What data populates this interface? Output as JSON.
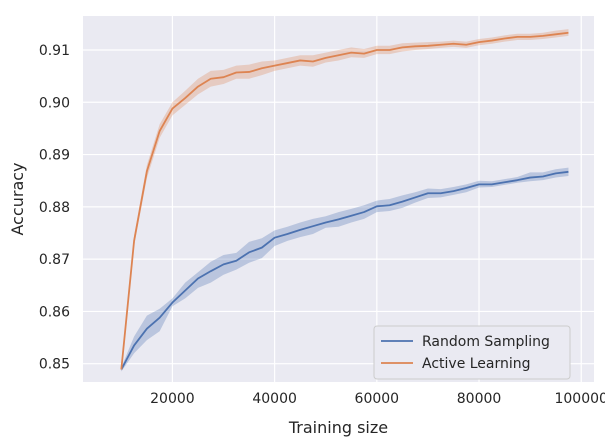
{
  "chart_data": {
    "type": "line",
    "xlabel": "Training size",
    "ylabel": "Accuracy",
    "xlim": [
      2500,
      102500
    ],
    "ylim": [
      0.8465,
      0.9165
    ],
    "x_ticks": [
      20000,
      40000,
      60000,
      80000,
      100000
    ],
    "x_tick_labels": [
      "20000",
      "40000",
      "60000",
      "80000",
      "100000"
    ],
    "y_ticks": [
      0.85,
      0.86,
      0.87,
      0.88,
      0.89,
      0.9,
      0.91
    ],
    "y_tick_labels": [
      "0.85",
      "0.86",
      "0.87",
      "0.88",
      "0.89",
      "0.90",
      "0.91"
    ],
    "grid": true,
    "legend_position": "bottom-right",
    "series": [
      {
        "name": "Random Sampling",
        "color": "#4c72b0",
        "x": [
          10000,
          12500,
          15000,
          17500,
          20000,
          22500,
          25000,
          27500,
          30000,
          32500,
          35000,
          37500,
          40000,
          42500,
          45000,
          47500,
          50000,
          52500,
          55000,
          57500,
          60000,
          62500,
          65000,
          67500,
          70000,
          72500,
          75000,
          77500,
          80000,
          82500,
          85000,
          87500,
          90000,
          92500,
          95000,
          97500
        ],
        "y": [
          0.8489,
          0.8535,
          0.8567,
          0.8588,
          0.8617,
          0.864,
          0.8663,
          0.8677,
          0.869,
          0.8697,
          0.8713,
          0.8722,
          0.8741,
          0.8748,
          0.8756,
          0.8763,
          0.877,
          0.8776,
          0.8783,
          0.879,
          0.8801,
          0.8803,
          0.881,
          0.8818,
          0.8826,
          0.8826,
          0.883,
          0.8836,
          0.8843,
          0.8843,
          0.8847,
          0.8851,
          0.8856,
          0.8858,
          0.8864,
          0.8867
        ],
        "lower": [
          0.8485,
          0.852,
          0.8545,
          0.8562,
          0.861,
          0.8625,
          0.8645,
          0.8655,
          0.867,
          0.868,
          0.8693,
          0.8702,
          0.8725,
          0.8735,
          0.8742,
          0.8748,
          0.876,
          0.8762,
          0.877,
          0.8777,
          0.879,
          0.8792,
          0.8798,
          0.8808,
          0.8817,
          0.8818,
          0.8823,
          0.8828,
          0.8837,
          0.8838,
          0.8842,
          0.8846,
          0.8849,
          0.8851,
          0.8856,
          0.8859
        ],
        "upper": [
          0.8493,
          0.8552,
          0.8592,
          0.8605,
          0.8625,
          0.8655,
          0.8675,
          0.8695,
          0.8708,
          0.8712,
          0.8733,
          0.874,
          0.8755,
          0.8762,
          0.877,
          0.8777,
          0.8782,
          0.879,
          0.8796,
          0.8803,
          0.8812,
          0.8815,
          0.8822,
          0.8828,
          0.8835,
          0.8834,
          0.8838,
          0.8843,
          0.885,
          0.8849,
          0.8853,
          0.8857,
          0.8866,
          0.8866,
          0.8872,
          0.8875
        ]
      },
      {
        "name": "Active Learning",
        "color": "#dd8452",
        "x": [
          10000,
          12500,
          15000,
          17500,
          20000,
          22500,
          25000,
          27500,
          30000,
          32500,
          35000,
          37500,
          40000,
          42500,
          45000,
          47500,
          50000,
          52500,
          55000,
          57500,
          60000,
          62500,
          65000,
          67500,
          70000,
          72500,
          75000,
          77500,
          80000,
          82500,
          85000,
          87500,
          90000,
          92500,
          95000,
          97500
        ],
        "y": [
          0.8489,
          0.8735,
          0.8868,
          0.8945,
          0.8988,
          0.9008,
          0.903,
          0.9045,
          0.9048,
          0.9057,
          0.9058,
          0.9065,
          0.907,
          0.9075,
          0.908,
          0.9078,
          0.9085,
          0.909,
          0.9095,
          0.9093,
          0.91,
          0.91,
          0.9105,
          0.9107,
          0.9108,
          0.911,
          0.9112,
          0.911,
          0.9115,
          0.9118,
          0.9122,
          0.9125,
          0.9125,
          0.9127,
          0.913,
          0.9133
        ],
        "lower": [
          0.8485,
          0.8725,
          0.8855,
          0.8932,
          0.8975,
          0.8995,
          0.9015,
          0.903,
          0.9035,
          0.9045,
          0.9045,
          0.9052,
          0.906,
          0.9065,
          0.907,
          0.9068,
          0.9076,
          0.908,
          0.9086,
          0.9085,
          0.9092,
          0.9092,
          0.9097,
          0.91,
          0.9102,
          0.9104,
          0.9106,
          0.9104,
          0.9109,
          0.9112,
          0.9116,
          0.9119,
          0.9119,
          0.9121,
          0.9124,
          0.9127
        ],
        "upper": [
          0.8493,
          0.8745,
          0.888,
          0.8958,
          0.9,
          0.9022,
          0.9045,
          0.906,
          0.9062,
          0.907,
          0.9072,
          0.9078,
          0.908,
          0.9085,
          0.909,
          0.909,
          0.9095,
          0.91,
          0.9105,
          0.9102,
          0.9108,
          0.9108,
          0.9113,
          0.9114,
          0.9115,
          0.9116,
          0.9118,
          0.9116,
          0.9121,
          0.9124,
          0.9128,
          0.9131,
          0.9131,
          0.9133,
          0.9137,
          0.914
        ]
      }
    ]
  }
}
